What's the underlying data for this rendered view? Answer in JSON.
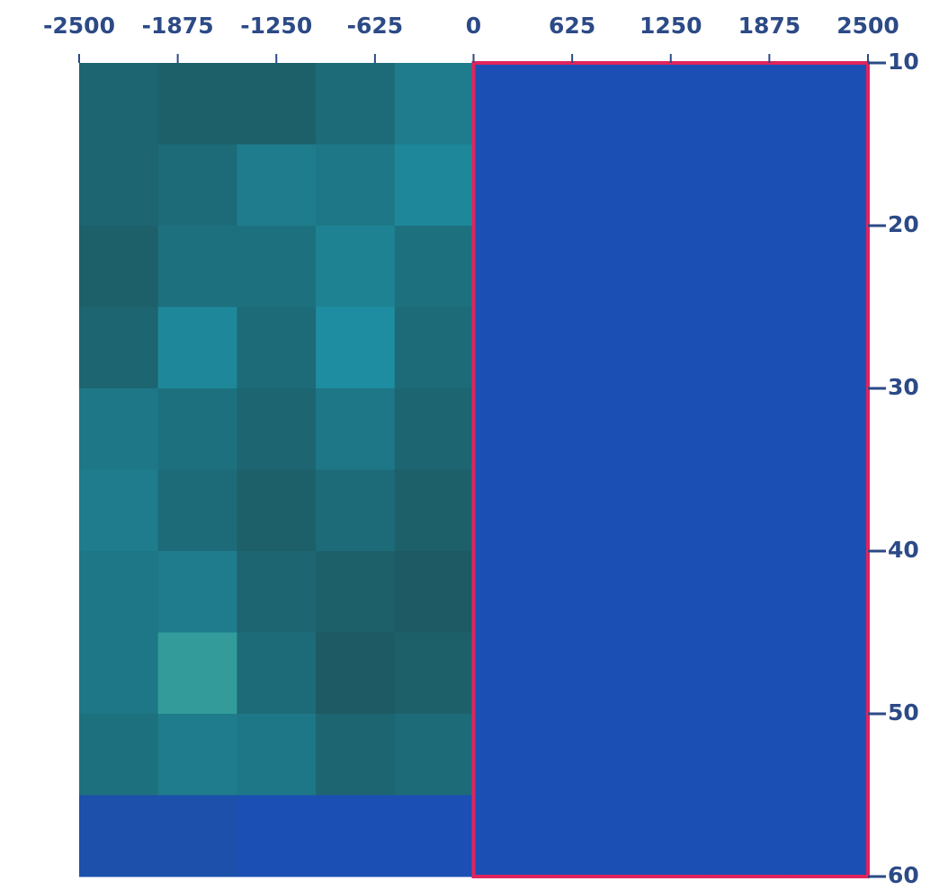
{
  "chart_data": {
    "type": "heatmap",
    "x_edges": [
      -2500,
      -2000,
      -1500,
      -1000,
      -500,
      0,
      500,
      1000,
      1500,
      2000,
      2500
    ],
    "y_edges": [
      10,
      15,
      20,
      25,
      30,
      35,
      40,
      45,
      50,
      55,
      60
    ],
    "z": [
      [
        1.2,
        1.1,
        1.1,
        1.3,
        1.6,
        0,
        0,
        0,
        0,
        0
      ],
      [
        1.2,
        1.3,
        1.6,
        1.5,
        1.8,
        0,
        0,
        0,
        0,
        0
      ],
      [
        1.1,
        1.4,
        1.4,
        1.7,
        1.4,
        0,
        0,
        0,
        0,
        0
      ],
      [
        1.2,
        1.8,
        1.3,
        1.9,
        1.3,
        0,
        0,
        0,
        0,
        0
      ],
      [
        1.5,
        1.4,
        1.2,
        1.5,
        1.2,
        0,
        0,
        0,
        0,
        0
      ],
      [
        1.6,
        1.3,
        1.1,
        1.3,
        1.1,
        0,
        0,
        0,
        0,
        0
      ],
      [
        1.5,
        1.6,
        1.2,
        1.1,
        1.0,
        0,
        0,
        0,
        0,
        0
      ],
      [
        1.5,
        2.1,
        1.3,
        1.0,
        1.1,
        0,
        0,
        0,
        0,
        0
      ],
      [
        1.4,
        1.6,
        1.5,
        1.2,
        1.3,
        0,
        0,
        0,
        0,
        0
      ],
      [
        0.1,
        0.1,
        0,
        0,
        0,
        0,
        0,
        0,
        0,
        0
      ]
    ],
    "colorscale": [
      [
        0,
        "#1c4fb3"
      ],
      [
        1,
        "#1d5a63"
      ],
      [
        2,
        "#1e93a8"
      ],
      [
        3,
        "#f2e82a"
      ]
    ],
    "xlim": [
      -2500,
      2500
    ],
    "xticks": [
      -2500,
      -1875,
      -1250,
      -625,
      0,
      625,
      1250,
      1875,
      2500
    ],
    "ylim": [
      10,
      60
    ],
    "y_reversed": true,
    "yticks": [
      10,
      20,
      30,
      40,
      50,
      60
    ],
    "highlight_xlim": [
      0,
      2500
    ],
    "highlight_color": "#e0245e"
  }
}
